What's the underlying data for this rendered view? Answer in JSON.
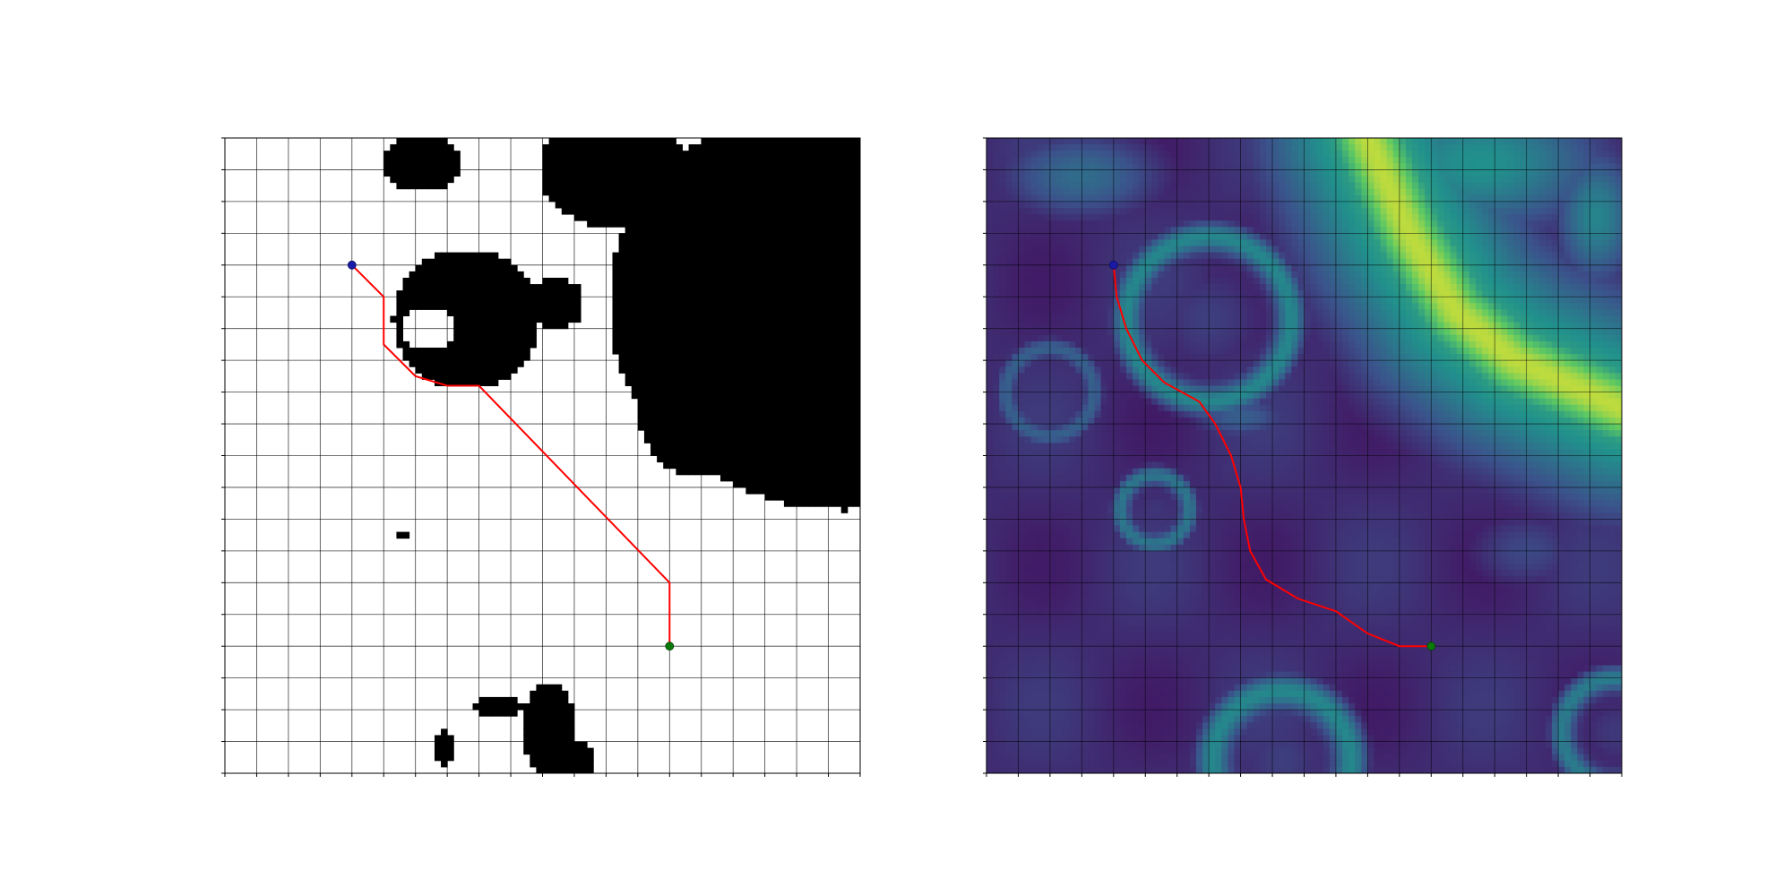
{
  "figure": {
    "background": "#ffffff"
  },
  "chart_data": [
    {
      "type": "heatmap",
      "panel": "left",
      "title": "",
      "xlabel": "",
      "ylabel": "",
      "grid": true,
      "grid_divisions": 20,
      "xlim": [
        0,
        20
      ],
      "ylim": [
        0,
        20
      ],
      "colormap": "binary",
      "cell_colors": {
        "free": "#ffffff",
        "obstacle": "#000000"
      },
      "path_color": "#ff0000",
      "start": {
        "x": 4,
        "y": 4
      },
      "goal": {
        "x": 14,
        "y": 16
      },
      "start_color": "#1a1aa6",
      "goal_color": "#0a7a0a",
      "path": [
        [
          4,
          4
        ],
        [
          5,
          5
        ],
        [
          5,
          6.5
        ],
        [
          6,
          7.5
        ],
        [
          7,
          7.8
        ],
        [
          8,
          7.8
        ],
        [
          14,
          14
        ],
        [
          14,
          16
        ]
      ],
      "obstacles": [
        {
          "shape": "ellipse",
          "cx": 19.5,
          "cy": 5.2,
          "rx": 7.4,
          "ry": 6.5
        },
        {
          "shape": "ellipse",
          "cx": 12.2,
          "cy": 1.0,
          "rx": 2.3,
          "ry": 1.8
        },
        {
          "shape": "ellipse",
          "cx": 15.0,
          "cy": 3.6,
          "rx": 2.4,
          "ry": 2.3
        },
        {
          "shape": "ellipse",
          "cx": 15.0,
          "cy": 8.5,
          "rx": 2.0,
          "ry": 2.2
        },
        {
          "shape": "ellipse",
          "cx": 6.2,
          "cy": 0.8,
          "rx": 1.2,
          "ry": 0.9
        },
        {
          "shape": "ellipse",
          "cx": 7.6,
          "cy": 5.7,
          "rx": 2.3,
          "ry": 2.2
        },
        {
          "shape": "ellipse",
          "cx": 10.4,
          "cy": 5.2,
          "rx": 0.9,
          "ry": 0.8
        },
        {
          "shape": "ellipse",
          "cx": 8.6,
          "cy": 17.9,
          "rx": 0.8,
          "ry": 0.28
        },
        {
          "shape": "ellipse",
          "cx": 10.2,
          "cy": 18.6,
          "rx": 0.9,
          "ry": 1.4
        },
        {
          "shape": "ellipse",
          "cx": 11.0,
          "cy": 19.6,
          "rx": 0.7,
          "ry": 0.6
        },
        {
          "shape": "ellipse",
          "cx": 6.9,
          "cy": 19.2,
          "rx": 0.35,
          "ry": 0.6
        },
        {
          "shape": "ellipse",
          "cx": 5.6,
          "cy": 12.5,
          "rx": 0.15,
          "ry": 0.1
        }
      ],
      "free_holes": [
        {
          "shape": "ellipse",
          "cx": 6.4,
          "cy": 6.0,
          "rx": 0.8,
          "ry": 0.7
        }
      ]
    },
    {
      "type": "heatmap",
      "panel": "right",
      "title": "",
      "xlabel": "",
      "ylabel": "",
      "grid": true,
      "grid_divisions": 20,
      "xlim": [
        0,
        20
      ],
      "ylim": [
        0,
        20
      ],
      "colormap": "viridis",
      "value_range": [
        0,
        1
      ],
      "background_value": 0.13,
      "path_color": "#ff0000",
      "start": {
        "x": 4,
        "y": 4
      },
      "goal": {
        "x": 14,
        "y": 16
      },
      "start_color": "#1a1aa6",
      "goal_color": "#0a7a0a",
      "path": [
        [
          4,
          4
        ],
        [
          4.1,
          5
        ],
        [
          4.4,
          6
        ],
        [
          4.9,
          7
        ],
        [
          5.6,
          7.7
        ],
        [
          6.7,
          8.3
        ],
        [
          7.2,
          9
        ],
        [
          7.7,
          10
        ],
        [
          8,
          11
        ],
        [
          8.1,
          12
        ],
        [
          8.3,
          13
        ],
        [
          8.8,
          13.9
        ],
        [
          9.8,
          14.5
        ],
        [
          11,
          14.9
        ],
        [
          12,
          15.6
        ],
        [
          13,
          16
        ],
        [
          14,
          16
        ]
      ],
      "features": [
        {
          "kind": "ridge",
          "points": [
            [
              12,
              0
            ],
            [
              13.3,
              3
            ],
            [
              14.8,
              5.5
            ],
            [
              16.6,
              7
            ],
            [
              20,
              8.5
            ]
          ],
          "width": 6.0,
          "value": 0.6
        },
        {
          "kind": "ridge",
          "points": [
            [
              12,
              0
            ],
            [
              13.3,
              3
            ],
            [
              14.8,
              5.5
            ],
            [
              16.6,
              7
            ],
            [
              20,
              8.5
            ]
          ],
          "width": 2.6,
          "value": 0.9
        },
        {
          "kind": "blob",
          "cx": 15.5,
          "cy": 0.8,
          "rx": 4.5,
          "ry": 2.5,
          "value": 0.5
        },
        {
          "kind": "blob",
          "cx": 12.5,
          "cy": 2.2,
          "rx": 2.0,
          "ry": 2.5,
          "value": 0.45
        },
        {
          "kind": "blob",
          "cx": 3.0,
          "cy": 1.2,
          "rx": 3.0,
          "ry": 1.6,
          "value": 0.35
        },
        {
          "kind": "blob",
          "cx": 19.2,
          "cy": 2.5,
          "rx": 1.5,
          "ry": 2.5,
          "value": 0.45
        },
        {
          "kind": "blob",
          "cx": 8.0,
          "cy": 8.8,
          "rx": 1.8,
          "ry": 0.8,
          "value": 0.3
        },
        {
          "kind": "ring",
          "cx": 7.0,
          "cy": 5.7,
          "r": 2.6,
          "ring_width": 0.7,
          "value": 0.42
        },
        {
          "kind": "ring",
          "cx": 2.0,
          "cy": 8.0,
          "r": 1.4,
          "ring_width": 0.5,
          "value": 0.28
        },
        {
          "kind": "ring",
          "cx": 5.3,
          "cy": 11.7,
          "r": 1.1,
          "ring_width": 0.45,
          "value": 0.36
        },
        {
          "kind": "ring",
          "cx": 9.3,
          "cy": 19.6,
          "r": 2.2,
          "ring_width": 0.8,
          "value": 0.42
        },
        {
          "kind": "ring",
          "cx": 19.8,
          "cy": 18.7,
          "r": 1.7,
          "ring_width": 0.6,
          "value": 0.38
        },
        {
          "kind": "blob",
          "cx": 17.0,
          "cy": 13.0,
          "rx": 2.2,
          "ry": 1.5,
          "value": 0.22
        }
      ]
    }
  ]
}
